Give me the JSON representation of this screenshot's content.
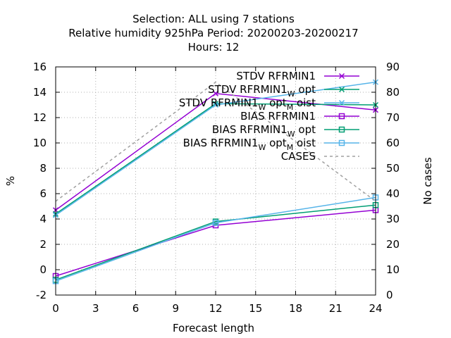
{
  "chart_data": {
    "type": "line",
    "title_lines": [
      "Selection: ALL using     7 stations",
      "Relative humidity 925hPa    Period: 20200203-20200217",
      "Hours:  12"
    ],
    "xlabel": "Forecast length",
    "ylabel": "%",
    "y2label": "No cases",
    "x": [
      0,
      12,
      24
    ],
    "xlim": [
      0,
      24
    ],
    "xticks": [
      0,
      3,
      6,
      9,
      12,
      15,
      18,
      21,
      24
    ],
    "ylim": [
      -2,
      16
    ],
    "yticks": [
      -2,
      0,
      2,
      4,
      6,
      8,
      10,
      12,
      14,
      16
    ],
    "y2lim": [
      0,
      90
    ],
    "y2ticks": [
      0,
      10,
      20,
      30,
      40,
      50,
      60,
      70,
      80,
      90
    ],
    "grid": true,
    "legend_position": "top-right",
    "series": [
      {
        "name": "STDV RFRMIN1",
        "name_parts": [
          {
            "t": "STDV RFRMIN1"
          }
        ],
        "values": [
          4.7,
          13.9,
          12.6
        ],
        "color": "#9400d3",
        "marker": "x",
        "dash": false,
        "axis": "y"
      },
      {
        "name": "STDV RFRMIN1 W opt",
        "name_parts": [
          {
            "t": "STDV RFRMIN1"
          },
          {
            "t": "W",
            "sub": true
          },
          {
            "t": "opt"
          }
        ],
        "values": [
          4.4,
          13.1,
          13.0
        ],
        "color": "#009e73",
        "marker": "x",
        "dash": false,
        "axis": "y"
      },
      {
        "name": "STDV RFRMIN1 W opt M oist",
        "name_parts": [
          {
            "t": "STDV RFRMIN1"
          },
          {
            "t": "W",
            "sub": true
          },
          {
            "t": "opt"
          },
          {
            "t": "M",
            "sub": true
          },
          {
            "t": "oist"
          }
        ],
        "values": [
          4.3,
          13.0,
          14.8
        ],
        "color": "#56b4e9",
        "marker": "x",
        "dash": false,
        "axis": "y"
      },
      {
        "name": "BIAS RFRMIN1",
        "name_parts": [
          {
            "t": "BIAS RFRMIN1"
          }
        ],
        "values": [
          -0.5,
          3.5,
          4.7
        ],
        "color": "#9400d3",
        "marker": "square",
        "dash": false,
        "axis": "y"
      },
      {
        "name": "BIAS RFRMIN1 W opt",
        "name_parts": [
          {
            "t": "BIAS RFRMIN1"
          },
          {
            "t": "W",
            "sub": true
          },
          {
            "t": "opt"
          }
        ],
        "values": [
          -0.8,
          3.8,
          5.1
        ],
        "color": "#009e73",
        "marker": "square",
        "dash": false,
        "axis": "y"
      },
      {
        "name": "BIAS RFRMIN1 W opt M oist",
        "name_parts": [
          {
            "t": "BIAS RFRMIN1"
          },
          {
            "t": "W",
            "sub": true
          },
          {
            "t": "opt"
          },
          {
            "t": "M",
            "sub": true
          },
          {
            "t": "oist"
          }
        ],
        "values": [
          -0.9,
          3.7,
          5.7
        ],
        "color": "#56b4e9",
        "marker": "square",
        "dash": false,
        "axis": "y"
      },
      {
        "name": "CASES",
        "name_parts": [
          {
            "t": "CASES"
          }
        ],
        "values": [
          37,
          84,
          37
        ],
        "color": "#a0a0a0",
        "marker": "none",
        "dash": true,
        "axis": "y2"
      }
    ]
  }
}
